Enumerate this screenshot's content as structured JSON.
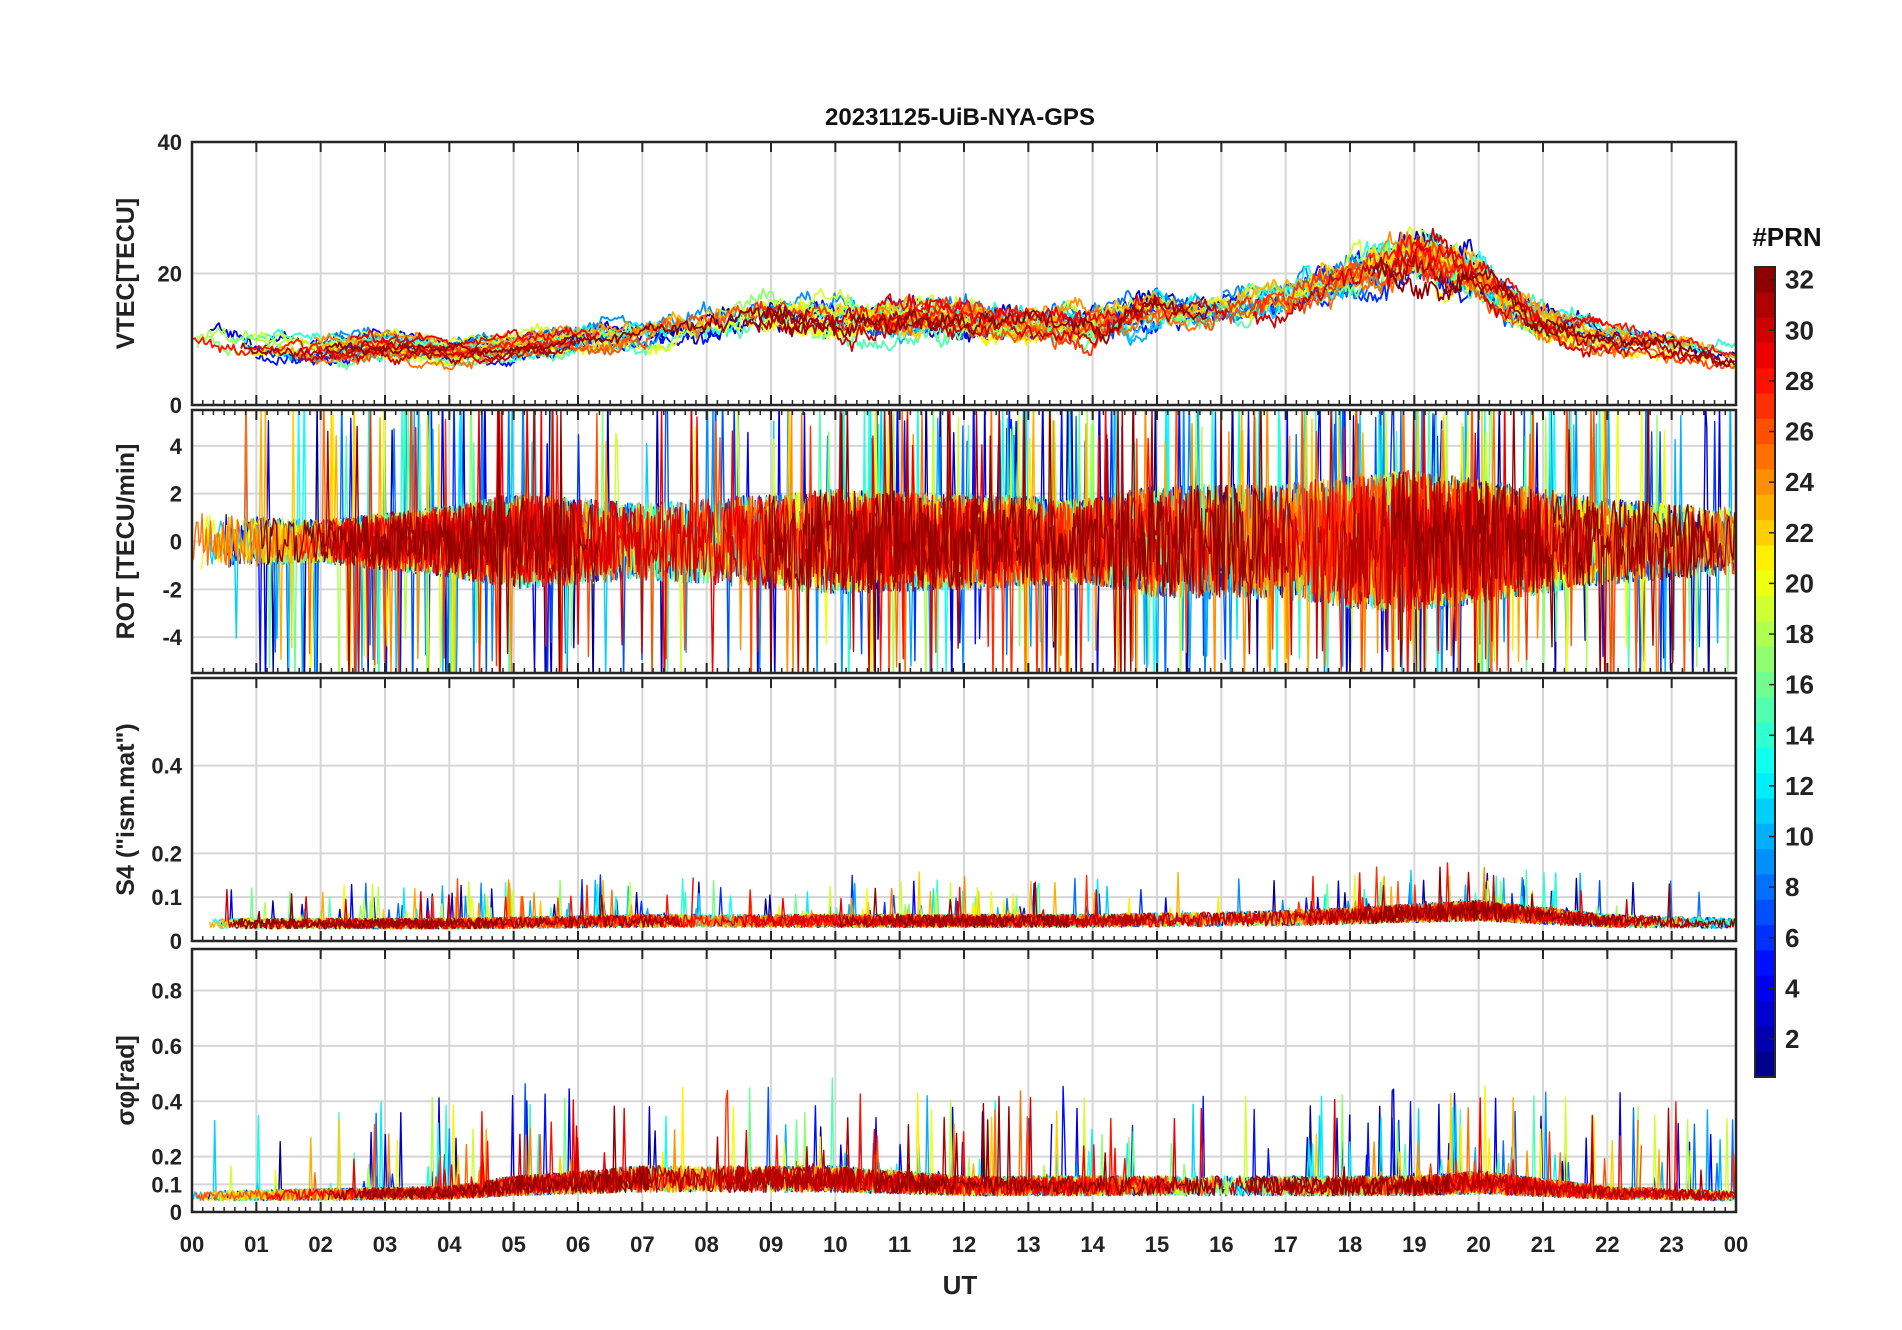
{
  "chart_data": {
    "type": "line",
    "title": "20231125-UiB-NYA-GPS",
    "xlabel": "UT",
    "x_ticks": [
      "00",
      "01",
      "02",
      "03",
      "04",
      "05",
      "06",
      "07",
      "08",
      "09",
      "10",
      "11",
      "12",
      "13",
      "14",
      "15",
      "16",
      "17",
      "18",
      "19",
      "20",
      "21",
      "22",
      "23",
      "00"
    ],
    "xlim": [
      0,
      24
    ],
    "panels": [
      {
        "id": "vtec",
        "ylabel": "VTEC[TECU]",
        "ylim": [
          0,
          40
        ],
        "yticks": [
          0,
          20,
          40
        ],
        "ytick_labels": [
          "0",
          "20",
          "40"
        ],
        "envelope": [
          [
            0,
            9,
            3
          ],
          [
            1,
            9,
            2.5
          ],
          [
            2,
            8.5,
            2.5
          ],
          [
            3,
            9,
            2.5
          ],
          [
            4,
            8,
            2
          ],
          [
            5,
            9,
            2
          ],
          [
            6,
            10,
            2.5
          ],
          [
            7,
            11,
            3
          ],
          [
            8,
            12,
            3.5
          ],
          [
            9,
            14,
            4
          ],
          [
            10,
            13,
            4
          ],
          [
            11,
            13,
            4
          ],
          [
            12,
            13,
            4
          ],
          [
            13,
            12,
            3.5
          ],
          [
            14,
            12,
            4
          ],
          [
            15,
            15,
            4
          ],
          [
            16,
            15,
            4
          ],
          [
            17,
            16,
            4
          ],
          [
            18,
            20,
            5
          ],
          [
            19,
            23,
            6
          ],
          [
            20,
            19,
            5
          ],
          [
            21,
            12,
            3.5
          ],
          [
            22,
            10,
            3
          ],
          [
            23,
            9,
            2.5
          ],
          [
            24,
            7,
            2
          ]
        ]
      },
      {
        "id": "rot",
        "ylabel": "ROT [TECU/min]",
        "ylim": [
          -5.5,
          5.5
        ],
        "yticks": [
          -4,
          -2,
          0,
          2,
          4
        ],
        "ytick_labels": [
          "-4",
          "-2",
          "0",
          "2",
          "4"
        ],
        "envelope": [
          [
            0,
            0,
            1.2
          ],
          [
            2,
            0,
            0.9
          ],
          [
            4,
            0,
            1.5
          ],
          [
            5,
            0,
            2.0
          ],
          [
            7,
            0,
            1.6
          ],
          [
            9,
            0,
            2.0
          ],
          [
            10,
            0,
            2.2
          ],
          [
            12,
            0,
            2.0
          ],
          [
            14,
            0,
            1.8
          ],
          [
            15,
            0,
            2.4
          ],
          [
            17,
            0,
            2.4
          ],
          [
            18,
            0,
            2.8
          ],
          [
            19,
            0,
            3.0
          ],
          [
            20,
            0,
            2.6
          ],
          [
            22,
            0,
            1.8
          ],
          [
            24,
            0,
            1.4
          ]
        ]
      },
      {
        "id": "s4",
        "ylabel": "S4 (\"ism.mat\")",
        "ylim": [
          0,
          0.6
        ],
        "yticks": [
          0,
          0.1,
          0.2,
          0.4
        ],
        "ytick_labels": [
          "0",
          "0.1",
          "0.2",
          "0.4"
        ],
        "envelope": [
          [
            0,
            0.035,
            0.02
          ],
          [
            4,
            0.035,
            0.02
          ],
          [
            7,
            0.04,
            0.025
          ],
          [
            10,
            0.04,
            0.025
          ],
          [
            14,
            0.04,
            0.025
          ],
          [
            17,
            0.045,
            0.03
          ],
          [
            19,
            0.055,
            0.035
          ],
          [
            20,
            0.06,
            0.04
          ],
          [
            22,
            0.04,
            0.025
          ],
          [
            24,
            0.035,
            0.02
          ]
        ]
      },
      {
        "id": "sigma",
        "ylabel": "σφ[rad]",
        "ylim": [
          0,
          0.95
        ],
        "yticks": [
          0,
          0.1,
          0.2,
          0.4,
          0.6,
          0.8
        ],
        "ytick_labels": [
          "0",
          "0.1",
          "0.2",
          "0.4",
          "0.6",
          "0.8"
        ],
        "envelope": [
          [
            0,
            0.05,
            0.03
          ],
          [
            4,
            0.06,
            0.04
          ],
          [
            5,
            0.08,
            0.06
          ],
          [
            7,
            0.1,
            0.08
          ],
          [
            9,
            0.1,
            0.08
          ],
          [
            10,
            0.1,
            0.08
          ],
          [
            12,
            0.08,
            0.06
          ],
          [
            14,
            0.08,
            0.06
          ],
          [
            17,
            0.08,
            0.06
          ],
          [
            19,
            0.08,
            0.06
          ],
          [
            20,
            0.09,
            0.07
          ],
          [
            22,
            0.06,
            0.04
          ],
          [
            24,
            0.05,
            0.03
          ]
        ]
      }
    ],
    "colorbar": {
      "title": "#PRN",
      "range": [
        1,
        32
      ],
      "ticks": [
        2,
        4,
        6,
        8,
        10,
        12,
        14,
        16,
        18,
        20,
        22,
        24,
        26,
        28,
        30,
        32
      ],
      "tick_labels": [
        "2",
        "4",
        "6",
        "8",
        "10",
        "12",
        "14",
        "16",
        "18",
        "20",
        "22",
        "24",
        "26",
        "28",
        "30",
        "32"
      ],
      "colormap": "jet",
      "steps": 32
    },
    "series_count": 32
  }
}
